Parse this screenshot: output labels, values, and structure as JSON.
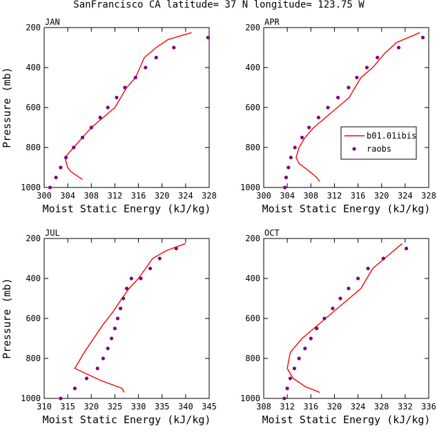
{
  "figure_title": "SanFrancisco CA  latitude= 37 N longitude= 123.75 W",
  "legend": {
    "model_label": "b01.01ibis",
    "obs_label": "raobs"
  },
  "colors": {
    "model": "#ff0000",
    "obs": "#800080"
  },
  "chart_data": [
    {
      "type": "line",
      "title": "JAN",
      "xlabel": "Moist Static Energy (kJ/kg)",
      "ylabel": "Pressure (mb)",
      "xlim": [
        300,
        328
      ],
      "ylim": [
        1000,
        200
      ],
      "xticks": [
        300,
        304,
        308,
        312,
        316,
        320,
        324,
        328
      ],
      "yticks": [
        200,
        400,
        600,
        800,
        1000
      ],
      "series": [
        {
          "name": "b01.01ibis",
          "kind": "line",
          "x": [
            306.5,
            305.5,
            304.5,
            304.0,
            303.5,
            305.0,
            306.5,
            308.0,
            310.0,
            312.0,
            314.0,
            315.5,
            317.0,
            319.0,
            321.0,
            325.0
          ],
          "y": [
            960,
            940,
            920,
            900,
            850,
            800,
            750,
            700,
            650,
            600,
            500,
            450,
            350,
            300,
            260,
            225
          ]
        },
        {
          "name": "raobs",
          "kind": "points",
          "x": [
            301.0,
            302.0,
            302.8,
            303.7,
            305.0,
            306.5,
            308.0,
            309.5,
            310.8,
            312.3,
            313.7,
            315.5,
            317.2,
            319.0,
            322.0,
            327.8
          ],
          "y": [
            1000,
            950,
            900,
            850,
            800,
            750,
            700,
            650,
            600,
            550,
            500,
            450,
            400,
            350,
            300,
            250
          ]
        }
      ]
    },
    {
      "type": "line",
      "title": "APR",
      "xlabel": "Moist Static Energy (kJ/kg)",
      "ylabel": "",
      "xlim": [
        300,
        328
      ],
      "ylim": [
        1000,
        200
      ],
      "xticks": [
        300,
        304,
        308,
        312,
        316,
        320,
        324,
        328
      ],
      "yticks": [
        200,
        400,
        600,
        800,
        1000
      ],
      "series": [
        {
          "name": "b01.01ibis",
          "kind": "line",
          "x": [
            309.5,
            309.0,
            308.0,
            306.0,
            305.5,
            306.0,
            307.0,
            308.5,
            310.5,
            312.5,
            314.5,
            316.5,
            318.5,
            320.5,
            322.5,
            326.5
          ],
          "y": [
            970,
            950,
            925,
            880,
            850,
            800,
            750,
            700,
            650,
            600,
            550,
            450,
            400,
            330,
            275,
            225
          ]
        },
        {
          "name": "raobs",
          "kind": "points",
          "x": [
            303.6,
            303.8,
            304.2,
            304.6,
            305.3,
            306.5,
            307.7,
            309.3,
            310.9,
            312.6,
            314.4,
            315.8,
            317.5,
            319.3,
            322.9,
            327.0
          ],
          "y": [
            1000,
            950,
            900,
            850,
            800,
            750,
            700,
            650,
            600,
            550,
            500,
            450,
            400,
            350,
            300,
            250
          ]
        }
      ]
    },
    {
      "type": "line",
      "title": "JUL",
      "xlabel": "Moist Static Energy (kJ/kg)",
      "ylabel": "Pressure (mb)",
      "xlim": [
        310,
        345
      ],
      "ylim": [
        1000,
        200
      ],
      "xticks": [
        310,
        315,
        320,
        325,
        330,
        335,
        340,
        345
      ],
      "yticks": [
        200,
        400,
        600,
        800,
        1000
      ],
      "series": [
        {
          "name": "b01.01ibis",
          "kind": "line",
          "x": [
            327.0,
            326.5,
            322.0,
            316.5,
            318.5,
            320.5,
            322.5,
            324.5,
            326.5,
            328.0,
            330.0,
            331.5,
            333.0,
            336.0,
            340.0
          ],
          "y": [
            970,
            950,
            910,
            850,
            770,
            700,
            630,
            570,
            500,
            450,
            400,
            350,
            300,
            260,
            225
          ]
        },
        {
          "name": "raobs",
          "kind": "points",
          "x": [
            313.5,
            316.5,
            319.0,
            321.3,
            322.5,
            323.5,
            324.3,
            325.0,
            325.6,
            326.2,
            326.8,
            327.5,
            328.5,
            330.5,
            332.5,
            334.5,
            338.0
          ],
          "y": [
            1000,
            950,
            900,
            850,
            800,
            750,
            700,
            650,
            600,
            550,
            500,
            450,
            400,
            400,
            350,
            300,
            250
          ]
        }
      ]
    },
    {
      "type": "line",
      "title": "OCT",
      "xlabel": "Moist Static Energy (kJ/kg)",
      "ylabel": "",
      "xlim": [
        308,
        336
      ],
      "ylim": [
        1000,
        200
      ],
      "xticks": [
        308,
        312,
        316,
        320,
        324,
        328,
        332,
        336
      ],
      "yticks": [
        200,
        400,
        600,
        800,
        1000
      ],
      "series": [
        {
          "name": "b01.01ibis",
          "kind": "line",
          "x": [
            317.5,
            315.0,
            313.0,
            312.0,
            312.5,
            314.5,
            316.5,
            318.5,
            320.5,
            322.5,
            324.5,
            326.5,
            328.5,
            331.5
          ],
          "y": [
            970,
            940,
            900,
            850,
            770,
            700,
            650,
            600,
            550,
            500,
            450,
            350,
            300,
            225
          ]
        },
        {
          "name": "raobs",
          "kind": "points",
          "x": [
            311.5,
            312.0,
            312.5,
            313.2,
            314.0,
            315.0,
            316.0,
            317.0,
            318.3,
            319.7,
            321.0,
            322.4,
            324.0,
            325.7,
            328.3,
            332.2
          ],
          "y": [
            1000,
            950,
            900,
            850,
            800,
            750,
            700,
            650,
            600,
            550,
            500,
            450,
            400,
            350,
            300,
            250
          ]
        }
      ]
    }
  ]
}
